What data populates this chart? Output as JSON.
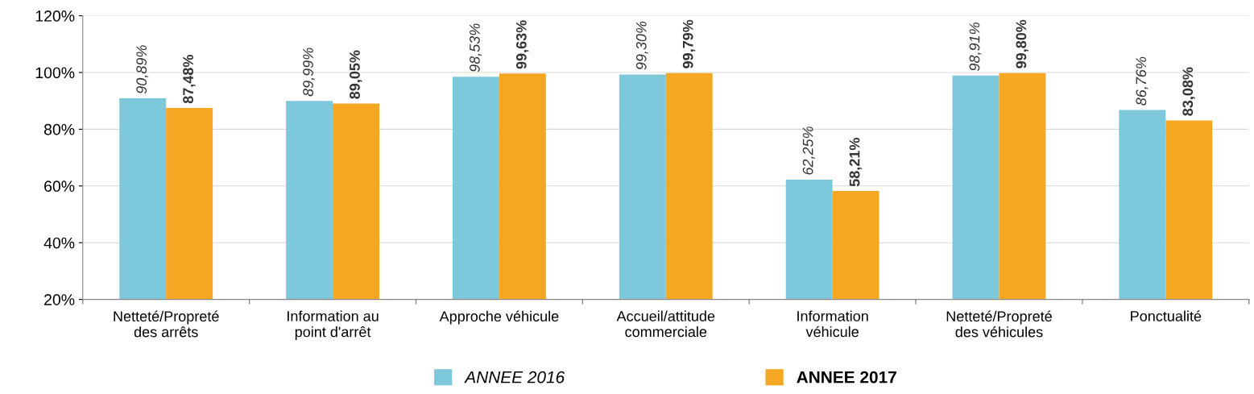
{
  "chart_data": {
    "type": "bar",
    "categories": [
      "Netteté/Propreté\ndes arrêts",
      "Information au\npoint d'arrêt",
      "Approche véhicule",
      "Accueil/attitude\ncommerciale",
      "Information\nvéhicule",
      "Netteté/Propreté\ndes véhicules",
      "Ponctualité"
    ],
    "series": [
      {
        "name": "ANNEE 2016",
        "color": "#7ec8dc",
        "values": [
          90.89,
          89.99,
          98.53,
          99.3,
          62.25,
          98.91,
          86.76
        ],
        "value_labels": [
          "90,89%",
          "89,99%",
          "98,53%",
          "99,30%",
          "62,25%",
          "98,91%",
          "86,76%"
        ]
      },
      {
        "name": "ANNEE 2017",
        "color": "#f5a623",
        "values": [
          87.48,
          89.05,
          99.63,
          99.79,
          58.21,
          99.8,
          83.08
        ],
        "value_labels": [
          "87,48%",
          "89,05%",
          "99,63%",
          "99,79%",
          "58,21%",
          "99,80%",
          "83,08%"
        ]
      }
    ],
    "ylim": [
      20,
      120
    ],
    "yticks": [
      {
        "value": 20,
        "label": "20%"
      },
      {
        "value": 40,
        "label": "40%"
      },
      {
        "value": 60,
        "label": "60%"
      },
      {
        "value": 80,
        "label": "80%"
      },
      {
        "value": 100,
        "label": "100%"
      },
      {
        "value": 120,
        "label": "120%"
      }
    ],
    "grid": "y",
    "legend": "bottom"
  }
}
